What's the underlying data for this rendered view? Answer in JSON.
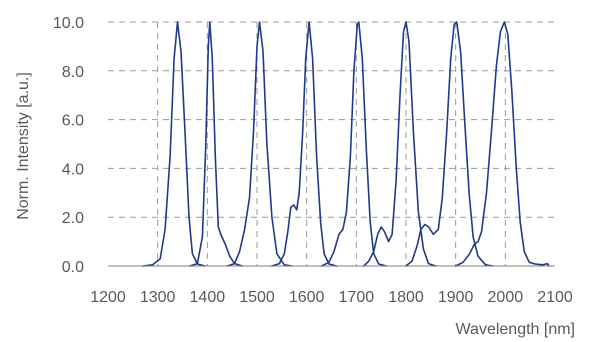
{
  "chart_data": {
    "type": "line",
    "title": "",
    "xlabel": "Wavelength [nm]",
    "ylabel": "Norm. Intensity [a.u.]",
    "xlim": [
      1200,
      2100
    ],
    "ylim": [
      0,
      10
    ],
    "x_ticks": [
      1200,
      1300,
      1400,
      1500,
      1600,
      1700,
      1800,
      1900,
      2000,
      2100
    ],
    "x_tick_labels": [
      "1200",
      "1300",
      "1400",
      "1500",
      "1600",
      "1700",
      "1800",
      "1900",
      "2000",
      "2100"
    ],
    "y_ticks": [
      0,
      2,
      4,
      6,
      8,
      10
    ],
    "y_tick_labels": [
      "0.0",
      "2.0",
      "4.0",
      "6.0",
      "8.0",
      "10.0"
    ],
    "grid": true,
    "grid_style": "dashed",
    "legend": "none",
    "line_color": "#1f3a8a",
    "grid_color": "#9a9a9a",
    "series": [
      {
        "peak": 1340,
        "points": [
          [
            1270,
            0.0
          ],
          [
            1290,
            0.05
          ],
          [
            1305,
            0.3
          ],
          [
            1315,
            1.5
          ],
          [
            1325,
            4.5
          ],
          [
            1333,
            8.5
          ],
          [
            1340,
            10.0
          ],
          [
            1347,
            8.8
          ],
          [
            1355,
            5.5
          ],
          [
            1363,
            2.0
          ],
          [
            1370,
            0.5
          ],
          [
            1380,
            0.08
          ],
          [
            1395,
            0.0
          ]
        ]
      },
      {
        "peak": 1405,
        "points": [
          [
            1365,
            0.0
          ],
          [
            1380,
            0.1
          ],
          [
            1390,
            1.2
          ],
          [
            1397,
            5.0
          ],
          [
            1402,
            9.0
          ],
          [
            1405,
            10.0
          ],
          [
            1410,
            8.5
          ],
          [
            1416,
            4.5
          ],
          [
            1422,
            1.6
          ],
          [
            1428,
            1.25
          ],
          [
            1436,
            0.9
          ],
          [
            1445,
            0.4
          ],
          [
            1455,
            0.1
          ],
          [
            1470,
            0.0
          ]
        ]
      },
      {
        "peak": 1505,
        "points": [
          [
            1440,
            0.0
          ],
          [
            1455,
            0.1
          ],
          [
            1465,
            0.6
          ],
          [
            1475,
            1.5
          ],
          [
            1485,
            2.8
          ],
          [
            1493,
            5.5
          ],
          [
            1500,
            9.0
          ],
          [
            1505,
            10.0
          ],
          [
            1512,
            8.8
          ],
          [
            1520,
            5.0
          ],
          [
            1530,
            2.0
          ],
          [
            1540,
            0.5
          ],
          [
            1555,
            0.05
          ],
          [
            1570,
            0.0
          ]
        ]
      },
      {
        "peak": 1605,
        "points": [
          [
            1530,
            0.0
          ],
          [
            1545,
            0.1
          ],
          [
            1555,
            0.5
          ],
          [
            1562,
            1.4
          ],
          [
            1568,
            2.4
          ],
          [
            1574,
            2.5
          ],
          [
            1580,
            2.3
          ],
          [
            1585,
            3.0
          ],
          [
            1592,
            5.5
          ],
          [
            1598,
            8.5
          ],
          [
            1605,
            10.0
          ],
          [
            1612,
            8.5
          ],
          [
            1620,
            4.5
          ],
          [
            1628,
            1.8
          ],
          [
            1635,
            0.5
          ],
          [
            1645,
            0.08
          ],
          [
            1660,
            0.0
          ]
        ]
      },
      {
        "peak": 1705,
        "points": [
          [
            1630,
            0.0
          ],
          [
            1645,
            0.15
          ],
          [
            1655,
            0.6
          ],
          [
            1665,
            1.3
          ],
          [
            1673,
            1.5
          ],
          [
            1680,
            2.2
          ],
          [
            1688,
            4.5
          ],
          [
            1695,
            8.0
          ],
          [
            1702,
            9.9
          ],
          [
            1705,
            10.0
          ],
          [
            1712,
            8.5
          ],
          [
            1720,
            4.8
          ],
          [
            1728,
            1.8
          ],
          [
            1735,
            0.5
          ],
          [
            1745,
            0.08
          ],
          [
            1760,
            0.0
          ]
        ]
      },
      {
        "peak": 1800,
        "points": [
          [
            1715,
            0.0
          ],
          [
            1725,
            0.2
          ],
          [
            1735,
            0.6
          ],
          [
            1743,
            1.3
          ],
          [
            1750,
            1.6
          ],
          [
            1757,
            1.4
          ],
          [
            1765,
            1.0
          ],
          [
            1772,
            1.3
          ],
          [
            1780,
            3.5
          ],
          [
            1788,
            7.0
          ],
          [
            1795,
            9.6
          ],
          [
            1800,
            10.0
          ],
          [
            1806,
            9.2
          ],
          [
            1815,
            5.5
          ],
          [
            1825,
            2.2
          ],
          [
            1835,
            0.7
          ],
          [
            1845,
            0.1
          ],
          [
            1860,
            0.0
          ]
        ]
      },
      {
        "peak": 1900,
        "points": [
          [
            1800,
            0.0
          ],
          [
            1812,
            0.2
          ],
          [
            1822,
            0.8
          ],
          [
            1830,
            1.5
          ],
          [
            1838,
            1.7
          ],
          [
            1846,
            1.6
          ],
          [
            1855,
            1.3
          ],
          [
            1865,
            1.5
          ],
          [
            1873,
            2.8
          ],
          [
            1882,
            5.5
          ],
          [
            1890,
            8.5
          ],
          [
            1897,
            9.9
          ],
          [
            1902,
            10.0
          ],
          [
            1910,
            8.8
          ],
          [
            1918,
            6.0
          ],
          [
            1927,
            3.0
          ],
          [
            1935,
            1.2
          ],
          [
            1945,
            0.4
          ],
          [
            1960,
            0.05
          ],
          [
            1975,
            0.0
          ]
        ]
      },
      {
        "peak": 2000,
        "points": [
          [
            1900,
            0.0
          ],
          [
            1915,
            0.15
          ],
          [
            1928,
            0.5
          ],
          [
            1938,
            0.9
          ],
          [
            1945,
            1.0
          ],
          [
            1952,
            1.4
          ],
          [
            1962,
            3.0
          ],
          [
            1972,
            5.5
          ],
          [
            1982,
            8.2
          ],
          [
            1990,
            9.6
          ],
          [
            1998,
            10.0
          ],
          [
            2005,
            9.5
          ],
          [
            2013,
            7.2
          ],
          [
            2022,
            4.0
          ],
          [
            2030,
            1.8
          ],
          [
            2038,
            0.6
          ],
          [
            2048,
            0.15
          ],
          [
            2060,
            0.08
          ],
          [
            2075,
            0.05
          ],
          [
            2085,
            0.1
          ],
          [
            2088,
            0.0
          ]
        ]
      }
    ]
  }
}
